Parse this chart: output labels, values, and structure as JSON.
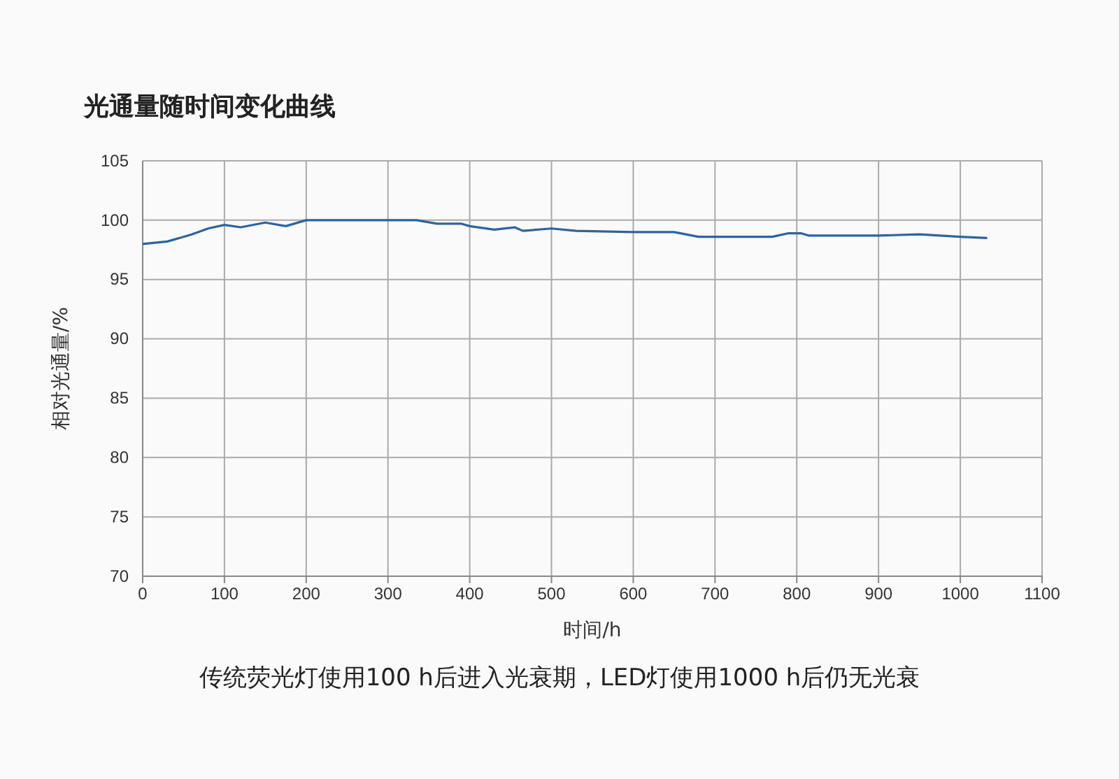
{
  "chart_data": {
    "type": "line",
    "title": "光通量随时间变化曲线",
    "xlabel": "时间/h",
    "ylabel": "相对光通量/%",
    "annotations": [
      "传统荧光灯使用100 h后进入光衰期，LED灯使用1000 h后仍无光衰"
    ],
    "x": [
      0,
      30,
      60,
      80,
      100,
      120,
      150,
      175,
      200,
      335,
      360,
      390,
      400,
      430,
      455,
      465,
      500,
      530,
      600,
      650,
      680,
      770,
      790,
      805,
      815,
      900,
      950,
      1000,
      1033
    ],
    "series": [
      {
        "color": "#2c64a0",
        "values": [
          98.0,
          98.2,
          98.8,
          99.3,
          99.6,
          99.4,
          99.8,
          99.5,
          100,
          100,
          99.7,
          99.7,
          99.5,
          99.2,
          99.4,
          99.1,
          99.3,
          99.1,
          99.0,
          99.0,
          98.6,
          98.6,
          98.9,
          98.9,
          98.7,
          98.7,
          98.8,
          98.6,
          98.5
        ]
      }
    ],
    "xlim": [
      0,
      1100
    ],
    "xticks": [
      0,
      100,
      200,
      300,
      400,
      500,
      600,
      700,
      800,
      900,
      1000,
      1100
    ],
    "ylim": [
      70,
      105
    ],
    "yticks": [
      70,
      75,
      80,
      85,
      90,
      95,
      100,
      105
    ],
    "grid": true,
    "marker": "none",
    "line_style": "solid"
  }
}
